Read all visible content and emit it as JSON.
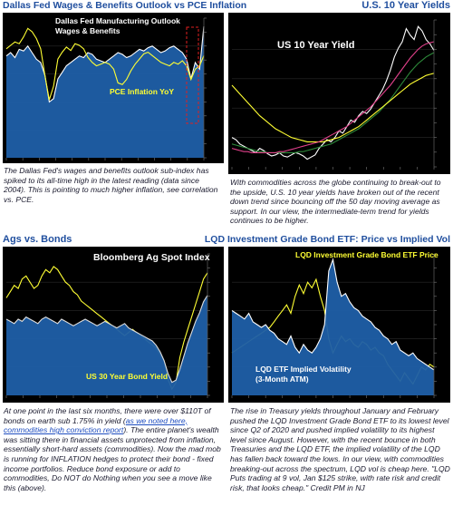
{
  "panels": [
    {
      "title": "Dallas Fed Wages & Benefits Outlook vs PCE Inflation",
      "chart_text": [
        "Dallas Fed Manufacturing Outlook",
        "Wages & Benefits",
        "PCE Inflation YoY"
      ],
      "caption": "The Dallas Fed's wages and benefits outlook sub-index has spiked to its all-time high in the latest reading (data since 2004). This is pointing to much higher inflation, see correlation vs. PCE."
    },
    {
      "title": "U.S. 10 Year Yields",
      "chart_text": [
        "US 10 Year Yield"
      ],
      "caption": "With commodities across the globe continuing to break-out to the upside, U.S. 10 year yields have broken out of the recent down trend since bouncing off the 50 day moving average as support. In our view, the intermediate-term trend for yields continues to be higher."
    },
    {
      "title": "Ags vs. Bonds",
      "chart_text": [
        "Bloomberg Ag Spot Index",
        "US 30 Year Bond Yield"
      ],
      "caption_pre": "At one point in the last six months, there were over $110T of bonds on earth sub 1.75% in yield (",
      "caption_link": "as we noted here, commodities high conviction report",
      "caption_post": "). The entire planet's wealth was sitting there in financial assets unprotected from inflation, essentially short-hard assets (commodities). Now the mad mob is running for  INFLATION hedges  to protect their bond - fixed income portfolios. Reduce bond exposure or add to commodities, Do NOT do Nothing when you see a move like this (above)."
    },
    {
      "title": "LQD Investment Grade Bond ETF: Price vs Implied Vol",
      "chart_text": [
        "LQD Investment Grade Bond ETF Price",
        "LQD ETF Implied Volatility",
        "(3-Month ATM)"
      ],
      "caption": "The rise in Treasury yields throughout January and February pushed the LQD Investment Grade Bond ETF to its lowest level since Q2 of 2020 and pushed implied volatility to its highest level since August. However, with the recent bounce in both Treasuries and the LQD ETF, the implied volatility of the LQD has fallen back toward the lows. In our view, with commodities breaking-out across the spectrum, LQD vol is cheap here. \"LQD Puts trading at 9 vol, Jan $125 strike, with rate risk and credit risk, that looks cheap.\" Credit PM in NJ"
    }
  ],
  "chart_data": [
    {
      "type": "area",
      "title": "Dallas Fed Wages & Benefits Outlook vs PCE Inflation",
      "series": [
        {
          "name": "Dallas Fed Manufacturing Outlook Wages & Benefits",
          "kind": "area",
          "color": "#ffffff",
          "fill": "#1f5fa8",
          "values": [
            22,
            24,
            21,
            26,
            25,
            28,
            24,
            20,
            18,
            10,
            -6,
            -4,
            8,
            12,
            16,
            18,
            20,
            22,
            21,
            24,
            23,
            20,
            19,
            18,
            20,
            22,
            24,
            23,
            21,
            22,
            24,
            26,
            25,
            27,
            28,
            26,
            24,
            25,
            27,
            28,
            26,
            24,
            20,
            8,
            18,
            14,
            40
          ]
        },
        {
          "name": "PCE Inflation YoY",
          "kind": "line",
          "color": "#ffff33",
          "values": [
            2.4,
            2.6,
            2.8,
            2.7,
            3.1,
            3.6,
            3.4,
            3.0,
            2.4,
            0.8,
            -0.6,
            0.2,
            1.8,
            2.2,
            2.5,
            2.3,
            2.7,
            2.6,
            2.4,
            1.9,
            1.6,
            1.4,
            1.5,
            1.6,
            1.5,
            1.2,
            0.4,
            0.3,
            0.6,
            1.1,
            1.5,
            1.8,
            2.1,
            2.2,
            2.0,
            1.8,
            1.6,
            1.5,
            1.4,
            1.6,
            1.5,
            1.7,
            1.4,
            0.6,
            1.2,
            1.4,
            2.0
          ]
        }
      ]
    },
    {
      "type": "line",
      "title": "U.S. 10 Year Yields",
      "series": [
        {
          "name": "US 10 Year Yield",
          "color": "#ffffff",
          "values": [
            0.72,
            0.7,
            0.66,
            0.64,
            0.62,
            0.6,
            0.58,
            0.62,
            0.6,
            0.57,
            0.55,
            0.56,
            0.58,
            0.55,
            0.54,
            0.56,
            0.58,
            0.57,
            0.55,
            0.52,
            0.54,
            0.56,
            0.62,
            0.66,
            0.7,
            0.68,
            0.72,
            0.78,
            0.76,
            0.82,
            0.88,
            0.86,
            0.92,
            0.96,
            0.94,
            0.98,
            1.04,
            1.1,
            1.16,
            1.24,
            1.34,
            1.46,
            1.54,
            1.6,
            1.72,
            1.66,
            1.62,
            1.74,
            1.7,
            1.62,
            1.58,
            1.52
          ]
        },
        {
          "name": "",
          "color": "#2d8a3a",
          "values": [
            0.66,
            0.65,
            0.64,
            0.63,
            0.62,
            0.61,
            0.6,
            0.59,
            0.59,
            0.58,
            0.58,
            0.58,
            0.58,
            0.58,
            0.58,
            0.58,
            0.58,
            0.59,
            0.59,
            0.6,
            0.61,
            0.62,
            0.63,
            0.64,
            0.65,
            0.66,
            0.68,
            0.7,
            0.72,
            0.74,
            0.76,
            0.78,
            0.8,
            0.83,
            0.86,
            0.89,
            0.92,
            0.95,
            0.99,
            1.03,
            1.07,
            1.12,
            1.17,
            1.22,
            1.27,
            1.32,
            1.36,
            1.4,
            1.43,
            1.46,
            1.48,
            1.5
          ]
        },
        {
          "name": "",
          "color": "#ffff33",
          "values": [
            1.2,
            1.16,
            1.12,
            1.08,
            1.04,
            1.0,
            0.96,
            0.92,
            0.89,
            0.86,
            0.83,
            0.8,
            0.78,
            0.76,
            0.74,
            0.72,
            0.71,
            0.7,
            0.69,
            0.68,
            0.68,
            0.68,
            0.68,
            0.68,
            0.69,
            0.7,
            0.71,
            0.72,
            0.74,
            0.76,
            0.78,
            0.8,
            0.82,
            0.85,
            0.88,
            0.91,
            0.94,
            0.97,
            1.0,
            1.03,
            1.06,
            1.09,
            1.12,
            1.15,
            1.18,
            1.21,
            1.23,
            1.25,
            1.27,
            1.29,
            1.3,
            1.31
          ]
        },
        {
          "name": "",
          "color": "#e0408a",
          "values": [
            0.62,
            0.61,
            0.6,
            0.59,
            0.59,
            0.58,
            0.58,
            0.58,
            0.58,
            0.58,
            0.58,
            0.58,
            0.59,
            0.59,
            0.6,
            0.61,
            0.62,
            0.63,
            0.64,
            0.65,
            0.66,
            0.67,
            0.68,
            0.7,
            0.72,
            0.74,
            0.76,
            0.78,
            0.8,
            0.82,
            0.85,
            0.88,
            0.91,
            0.94,
            0.97,
            1.0,
            1.04,
            1.08,
            1.12,
            1.16,
            1.2,
            1.25,
            1.3,
            1.35,
            1.4,
            1.45,
            1.49,
            1.53,
            1.56,
            1.58,
            1.59,
            1.6
          ]
        }
      ]
    },
    {
      "type": "line",
      "title": "Ags vs. Bonds",
      "series": [
        {
          "name": "Bloomberg Ag Spot Index",
          "color": "#ffff33",
          "values": [
            42,
            46,
            50,
            48,
            54,
            56,
            52,
            48,
            50,
            56,
            60,
            58,
            62,
            60,
            56,
            52,
            50,
            46,
            44,
            40,
            38,
            36,
            34,
            32,
            30,
            28,
            26,
            24,
            22,
            20,
            18,
            20,
            22,
            20,
            18,
            16,
            14,
            12,
            10,
            6,
            2,
            -10,
            -16,
            -12,
            4,
            14,
            22,
            30,
            38,
            46,
            54,
            58
          ]
        },
        {
          "name": "US 30 Year Bond Yield",
          "kind": "area",
          "color": "#dddddd",
          "fill": "#1f5fa8",
          "values": [
            30,
            28,
            26,
            30,
            28,
            32,
            30,
            28,
            26,
            30,
            32,
            30,
            28,
            26,
            30,
            28,
            26,
            24,
            26,
            28,
            30,
            28,
            26,
            24,
            26,
            28,
            26,
            24,
            22,
            24,
            26,
            22,
            20,
            18,
            16,
            14,
            12,
            10,
            6,
            0,
            -8,
            -20,
            -28,
            -26,
            -16,
            -4,
            8,
            18,
            28,
            36,
            46,
            52
          ]
        }
      ]
    },
    {
      "type": "line",
      "title": "LQD Investment Grade Bond ETF: Price vs Implied Vol",
      "series": [
        {
          "name": "LQD Investment Grade Bond ETF Price",
          "color": "#ffff33",
          "values": [
            30,
            32,
            34,
            36,
            38,
            40,
            42,
            44,
            46,
            48,
            52,
            56,
            60,
            64,
            58,
            70,
            78,
            72,
            80,
            76,
            82,
            70,
            60,
            40,
            30,
            36,
            42,
            38,
            40,
            36,
            34,
            38,
            36,
            32,
            34,
            30,
            28,
            22,
            18,
            14,
            10,
            16,
            12,
            8,
            14,
            20,
            18,
            22,
            20
          ]
        },
        {
          "name": "LQD ETF Implied Volatility (3-Month ATM)",
          "kind": "area",
          "color": "#ffffff",
          "fill": "#1f5fa8",
          "values": [
            60,
            58,
            56,
            54,
            58,
            52,
            50,
            48,
            50,
            46,
            44,
            40,
            38,
            36,
            42,
            34,
            30,
            36,
            32,
            30,
            34,
            40,
            50,
            88,
            96,
            80,
            70,
            72,
            66,
            62,
            60,
            56,
            54,
            52,
            48,
            46,
            42,
            40,
            36,
            38,
            32,
            30,
            28,
            30,
            26,
            24,
            22,
            20,
            18
          ]
        }
      ]
    }
  ]
}
